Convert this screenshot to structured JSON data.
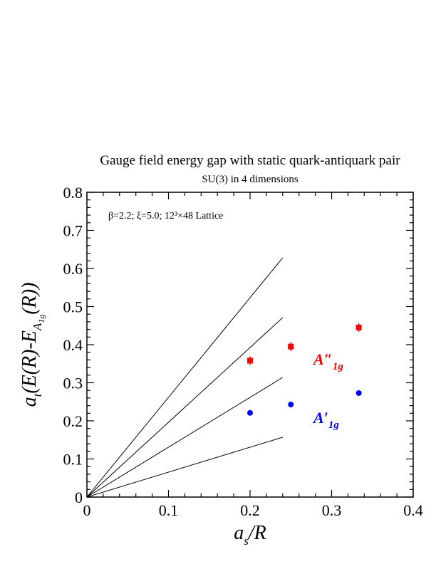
{
  "chart_data": {
    "type": "scatter",
    "title": "Gauge field energy gap with static quark-antiquark pair",
    "subtitle": "SU(3) in 4 dimensions",
    "annotation": "β=2.2;  ξ=5.0;  12³×48 Lattice",
    "xlabel": "a_s/R",
    "ylabel": "a_t(E(R)-E_A1g(R))",
    "xlim": [
      0,
      0.4
    ],
    "ylim": [
      0,
      0.8
    ],
    "x_ticks": [
      "0",
      "0.1",
      "0.2",
      "0.3",
      "0.4"
    ],
    "y_ticks": [
      "0",
      "0.1",
      "0.2",
      "0.3",
      "0.4",
      "0.5",
      "0.6",
      "0.7",
      "0.8"
    ],
    "series": [
      {
        "name": "A″_1g",
        "label_main": "A″",
        "label_sub": "1g",
        "color": "#ff0000",
        "marker": "square",
        "x": [
          0.2,
          0.25,
          0.3333
        ],
        "y": [
          0.358,
          0.395,
          0.445
        ]
      },
      {
        "name": "A′_1g",
        "label_main": "A′",
        "label_sub": "1g",
        "color": "#0000ff",
        "marker": "circle",
        "x": [
          0.2,
          0.25,
          0.3333
        ],
        "y": [
          0.221,
          0.243,
          0.273
        ]
      }
    ],
    "reference_lines": [
      {
        "x": [
          0,
          0.24
        ],
        "y": [
          0,
          0.628
        ]
      },
      {
        "x": [
          0,
          0.24
        ],
        "y": [
          0,
          0.471
        ]
      },
      {
        "x": [
          0,
          0.24
        ],
        "y": [
          0,
          0.314
        ]
      },
      {
        "x": [
          0,
          0.24
        ],
        "y": [
          0,
          0.157
        ]
      }
    ]
  }
}
